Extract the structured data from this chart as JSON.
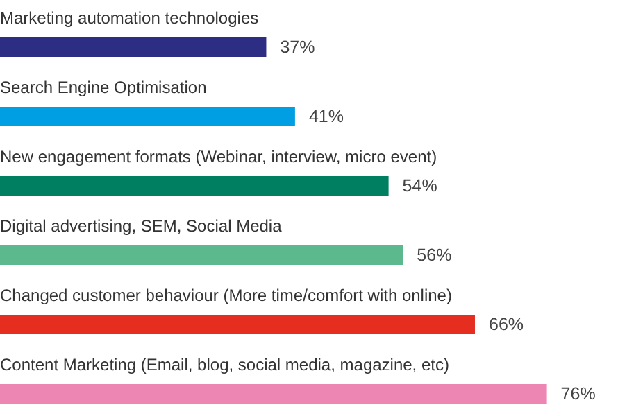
{
  "chart_data": {
    "type": "bar",
    "orientation": "horizontal",
    "categories": [
      "Marketing automation technologies",
      "Search Engine Optimisation",
      "New engagement formats (Webinar, interview, micro event)",
      "Digital advertising, SEM, Social Media",
      "Changed customer behaviour (More time/comfort with online)",
      "Content Marketing (Email, blog, social media, magazine, etc)"
    ],
    "values": [
      37,
      41,
      54,
      56,
      66,
      76
    ],
    "colors": [
      "#2d2e83",
      "#009fe3",
      "#008060",
      "#5cb98e",
      "#e52d20",
      "#ee86b4"
    ],
    "value_labels": [
      "37%",
      "41%",
      "54%",
      "56%",
      "66%",
      "76%"
    ]
  }
}
